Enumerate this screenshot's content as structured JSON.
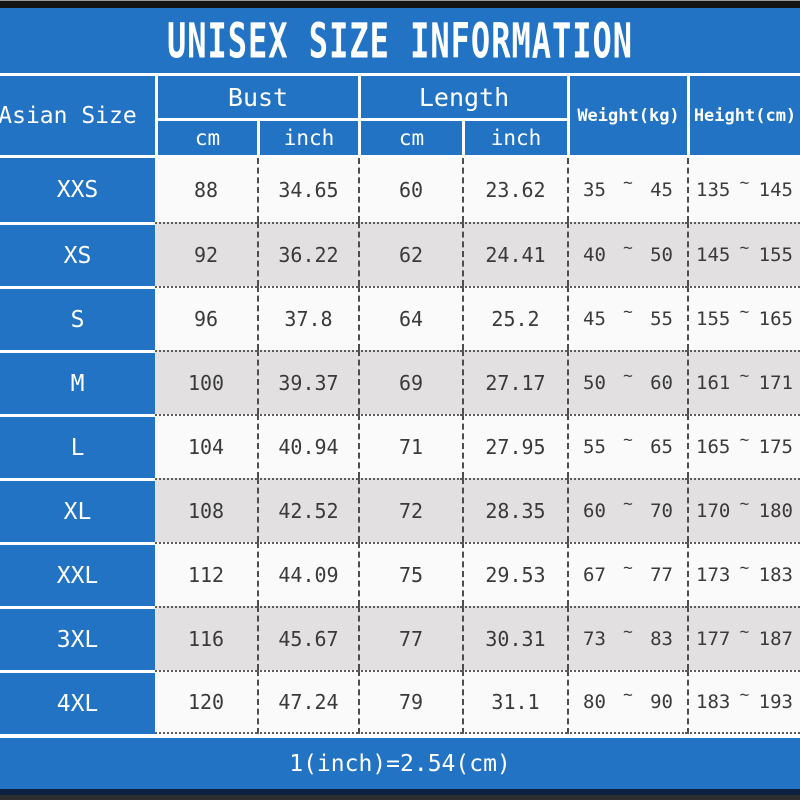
{
  "page": {
    "title": "UNISEX SIZE INFORMATION",
    "footer_note": "1(inch)=2.54(cm)"
  },
  "colors": {
    "accent_blue": "#2273c3",
    "alt_row_gray": "#e2e0e1",
    "white_row": "#fbfafa",
    "top_bar": "#141414",
    "bottom_bar": "#2e2e2e",
    "cell_text": "#3a3a3a"
  },
  "table": {
    "corner_header": "Asian Size",
    "groups": [
      {
        "label": "Bust",
        "subs": [
          "cm",
          "inch"
        ]
      },
      {
        "label": "Length",
        "subs": [
          "cm",
          "inch"
        ]
      }
    ],
    "spanning_headers": [
      "Weight(kg)",
      "Height(cm)"
    ],
    "range_separator": "~",
    "rows": [
      {
        "size": "XXS",
        "bust_cm": "88",
        "bust_inch": "34.65",
        "length_cm": "60",
        "length_inch": "23.62",
        "weight_min": "35",
        "weight_max": "45",
        "height_min": "135",
        "height_max": "145"
      },
      {
        "size": "XS",
        "bust_cm": "92",
        "bust_inch": "36.22",
        "length_cm": "62",
        "length_inch": "24.41",
        "weight_min": "40",
        "weight_max": "50",
        "height_min": "145",
        "height_max": "155"
      },
      {
        "size": "S",
        "bust_cm": "96",
        "bust_inch": "37.8",
        "length_cm": "64",
        "length_inch": "25.2",
        "weight_min": "45",
        "weight_max": "55",
        "height_min": "155",
        "height_max": "165"
      },
      {
        "size": "M",
        "bust_cm": "100",
        "bust_inch": "39.37",
        "length_cm": "69",
        "length_inch": "27.17",
        "weight_min": "50",
        "weight_max": "60",
        "height_min": "161",
        "height_max": "171"
      },
      {
        "size": "L",
        "bust_cm": "104",
        "bust_inch": "40.94",
        "length_cm": "71",
        "length_inch": "27.95",
        "weight_min": "55",
        "weight_max": "65",
        "height_min": "165",
        "height_max": "175"
      },
      {
        "size": "XL",
        "bust_cm": "108",
        "bust_inch": "42.52",
        "length_cm": "72",
        "length_inch": "28.35",
        "weight_min": "60",
        "weight_max": "70",
        "height_min": "170",
        "height_max": "180"
      },
      {
        "size": "XXL",
        "bust_cm": "112",
        "bust_inch": "44.09",
        "length_cm": "75",
        "length_inch": "29.53",
        "weight_min": "67",
        "weight_max": "77",
        "height_min": "173",
        "height_max": "183"
      },
      {
        "size": "3XL",
        "bust_cm": "116",
        "bust_inch": "45.67",
        "length_cm": "77",
        "length_inch": "30.31",
        "weight_min": "73",
        "weight_max": "83",
        "height_min": "177",
        "height_max": "187"
      },
      {
        "size": "4XL",
        "bust_cm": "120",
        "bust_inch": "47.24",
        "length_cm": "79",
        "length_inch": "31.1",
        "weight_min": "80",
        "weight_max": "90",
        "height_min": "183",
        "height_max": "193"
      }
    ]
  }
}
